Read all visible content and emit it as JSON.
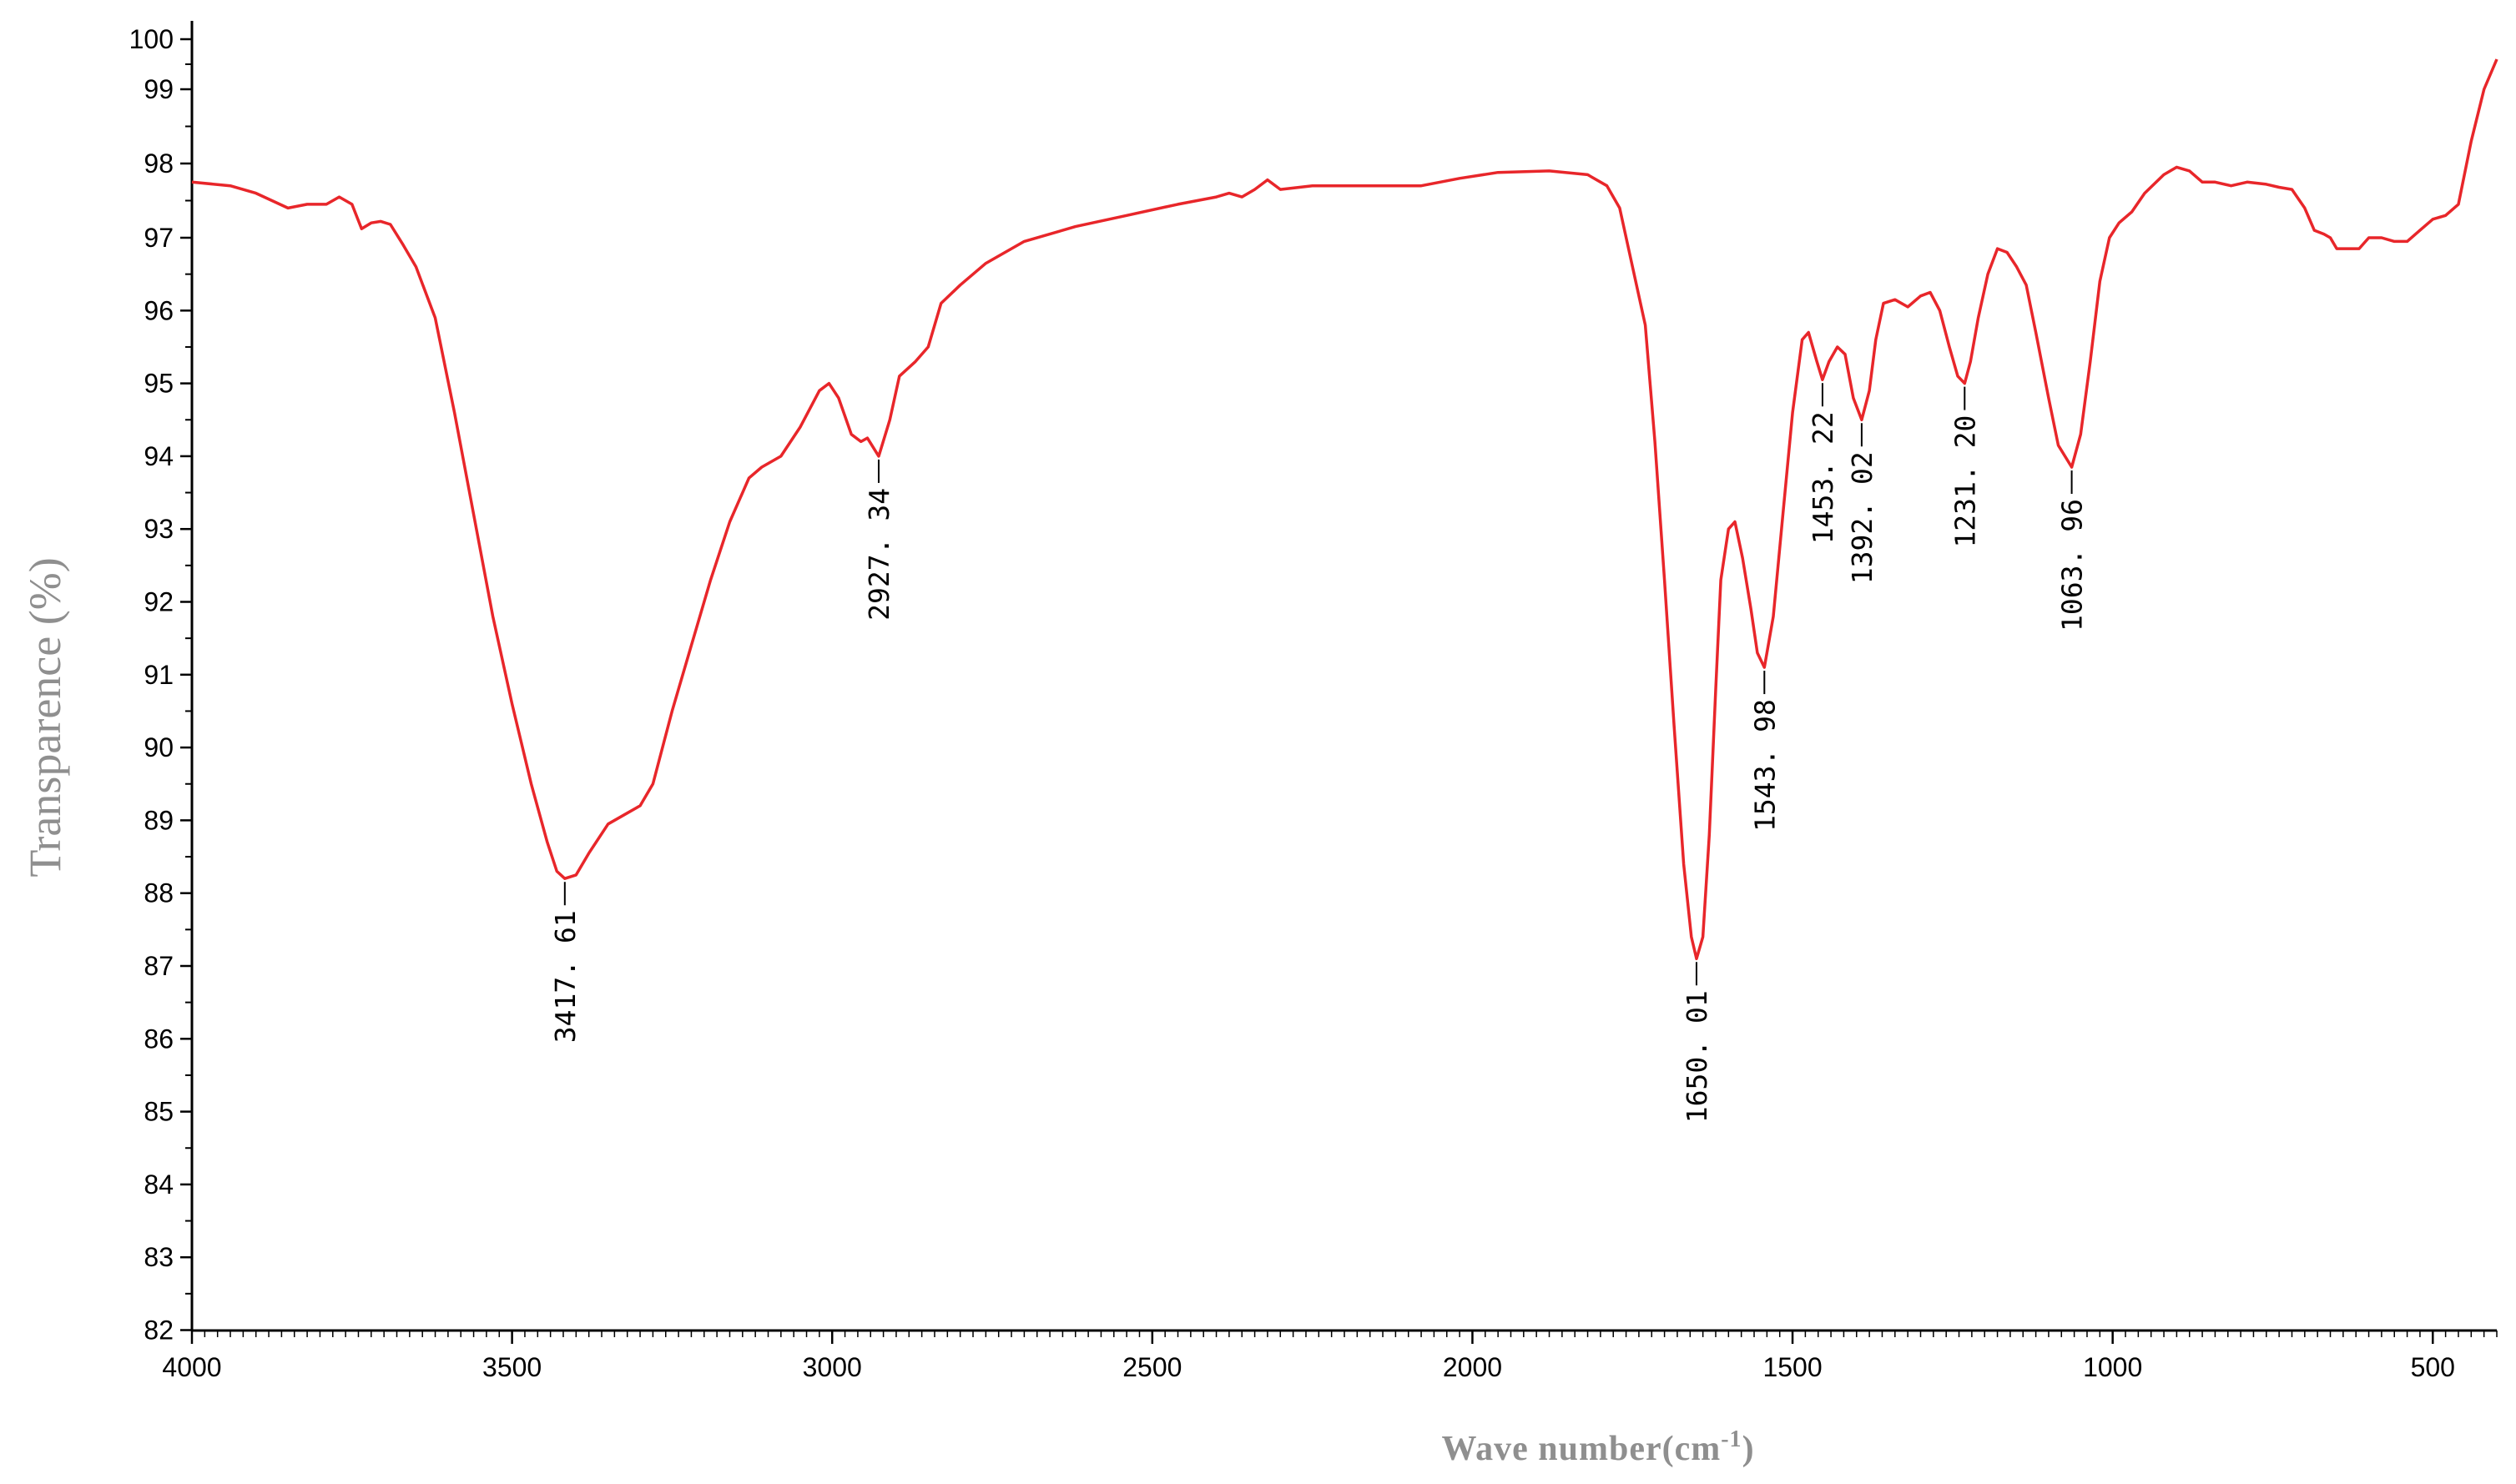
{
  "chart_data": {
    "type": "line",
    "xlabel": "Wave number(cm-1)",
    "ylabel": "Transparence (%)",
    "xlim": [
      4000,
      400
    ],
    "ylim": [
      82,
      100
    ],
    "x_ticks": [
      "4000",
      "3500",
      "3000",
      "2500",
      "2000",
      "1500",
      "1000",
      "500"
    ],
    "y_ticks": [
      "82",
      "83",
      "84",
      "85",
      "86",
      "87",
      "88",
      "89",
      "90",
      "91",
      "92",
      "93",
      "94",
      "95",
      "96",
      "97",
      "98",
      "99",
      "100"
    ],
    "grid": false,
    "line_color": "#e8262a",
    "series": [
      {
        "points": [
          [
            4000,
            97.75
          ],
          [
            3940,
            97.7
          ],
          [
            3900,
            97.6
          ],
          [
            3850,
            97.4
          ],
          [
            3820,
            97.45
          ],
          [
            3790,
            97.45
          ],
          [
            3770,
            97.55
          ],
          [
            3750,
            97.45
          ],
          [
            3735,
            97.12
          ],
          [
            3720,
            97.2
          ],
          [
            3705,
            97.22
          ],
          [
            3690,
            97.18
          ],
          [
            3670,
            96.9
          ],
          [
            3650,
            96.6
          ],
          [
            3620,
            95.9
          ],
          [
            3590,
            94.6
          ],
          [
            3560,
            93.2
          ],
          [
            3530,
            91.8
          ],
          [
            3500,
            90.6
          ],
          [
            3470,
            89.5
          ],
          [
            3445,
            88.7
          ],
          [
            3430,
            88.3
          ],
          [
            3417.61,
            88.2
          ],
          [
            3400,
            88.25
          ],
          [
            3380,
            88.55
          ],
          [
            3350,
            88.95
          ],
          [
            3320,
            89.1
          ],
          [
            3300,
            89.2
          ],
          [
            3280,
            89.5
          ],
          [
            3250,
            90.5
          ],
          [
            3220,
            91.4
          ],
          [
            3190,
            92.3
          ],
          [
            3160,
            93.1
          ],
          [
            3130,
            93.7
          ],
          [
            3110,
            93.85
          ],
          [
            3080,
            94.0
          ],
          [
            3050,
            94.4
          ],
          [
            3020,
            94.9
          ],
          [
            3005,
            95.0
          ],
          [
            2990,
            94.8
          ],
          [
            2970,
            94.3
          ],
          [
            2955,
            94.2
          ],
          [
            2945,
            94.25
          ],
          [
            2927.34,
            94.0
          ],
          [
            2910,
            94.5
          ],
          [
            2895,
            95.1
          ],
          [
            2870,
            95.3
          ],
          [
            2850,
            95.5
          ],
          [
            2830,
            96.1
          ],
          [
            2800,
            96.35
          ],
          [
            2760,
            96.65
          ],
          [
            2700,
            96.95
          ],
          [
            2620,
            97.15
          ],
          [
            2540,
            97.3
          ],
          [
            2460,
            97.45
          ],
          [
            2400,
            97.55
          ],
          [
            2380,
            97.6
          ],
          [
            2360,
            97.55
          ],
          [
            2340,
            97.65
          ],
          [
            2320,
            97.78
          ],
          [
            2300,
            97.65
          ],
          [
            2250,
            97.7
          ],
          [
            2200,
            97.7
          ],
          [
            2150,
            97.7
          ],
          [
            2080,
            97.7
          ],
          [
            2020,
            97.8
          ],
          [
            1960,
            97.88
          ],
          [
            1880,
            97.9
          ],
          [
            1820,
            97.85
          ],
          [
            1790,
            97.7
          ],
          [
            1770,
            97.4
          ],
          [
            1750,
            96.6
          ],
          [
            1730,
            95.8
          ],
          [
            1715,
            94.2
          ],
          [
            1700,
            92.3
          ],
          [
            1685,
            90.3
          ],
          [
            1670,
            88.4
          ],
          [
            1658,
            87.4
          ],
          [
            1650.01,
            87.1
          ],
          [
            1640,
            87.4
          ],
          [
            1630,
            88.8
          ],
          [
            1620,
            90.8
          ],
          [
            1612,
            92.3
          ],
          [
            1600,
            93.0
          ],
          [
            1590,
            93.1
          ],
          [
            1578,
            92.6
          ],
          [
            1565,
            91.9
          ],
          [
            1555,
            91.3
          ],
          [
            1543.98,
            91.1
          ],
          [
            1530,
            91.8
          ],
          [
            1515,
            93.2
          ],
          [
            1500,
            94.6
          ],
          [
            1485,
            95.6
          ],
          [
            1475,
            95.7
          ],
          [
            1462,
            95.3
          ],
          [
            1453.22,
            95.05
          ],
          [
            1443,
            95.3
          ],
          [
            1430,
            95.5
          ],
          [
            1418,
            95.4
          ],
          [
            1405,
            94.8
          ],
          [
            1392.02,
            94.5
          ],
          [
            1380,
            94.9
          ],
          [
            1370,
            95.6
          ],
          [
            1358,
            96.1
          ],
          [
            1340,
            96.15
          ],
          [
            1320,
            96.05
          ],
          [
            1300,
            96.2
          ],
          [
            1285,
            96.25
          ],
          [
            1270,
            96.0
          ],
          [
            1255,
            95.5
          ],
          [
            1242,
            95.1
          ],
          [
            1231.2,
            95.0
          ],
          [
            1222,
            95.3
          ],
          [
            1210,
            95.9
          ],
          [
            1195,
            96.5
          ],
          [
            1180,
            96.85
          ],
          [
            1165,
            96.8
          ],
          [
            1150,
            96.6
          ],
          [
            1135,
            96.35
          ],
          [
            1120,
            95.7
          ],
          [
            1100,
            94.8
          ],
          [
            1085,
            94.15
          ],
          [
            1063.96,
            93.85
          ],
          [
            1050,
            94.3
          ],
          [
            1035,
            95.3
          ],
          [
            1020,
            96.4
          ],
          [
            1005,
            97.0
          ],
          [
            990,
            97.2
          ],
          [
            970,
            97.35
          ],
          [
            950,
            97.6
          ],
          [
            920,
            97.85
          ],
          [
            900,
            97.95
          ],
          [
            880,
            97.9
          ],
          [
            860,
            97.75
          ],
          [
            840,
            97.75
          ],
          [
            815,
            97.7
          ],
          [
            790,
            97.75
          ],
          [
            760,
            97.72
          ],
          [
            740,
            97.68
          ],
          [
            720,
            97.65
          ],
          [
            700,
            97.4
          ],
          [
            685,
            97.1
          ],
          [
            670,
            97.05
          ],
          [
            660,
            97.0
          ],
          [
            650,
            96.85
          ],
          [
            635,
            96.85
          ],
          [
            615,
            96.85
          ],
          [
            600,
            97.0
          ],
          [
            580,
            97.0
          ],
          [
            560,
            96.95
          ],
          [
            540,
            96.95
          ],
          [
            520,
            97.1
          ],
          [
            500,
            97.25
          ],
          [
            480,
            97.3
          ],
          [
            460,
            97.45
          ],
          [
            440,
            98.3
          ],
          [
            420,
            99.0
          ],
          [
            400,
            99.6
          ]
        ]
      }
    ],
    "annotations": [
      {
        "x": 3417.61,
        "label": "3417. 61"
      },
      {
        "x": 2927.34,
        "label": "2927. 34"
      },
      {
        "x": 1650.01,
        "label": "1650. 01"
      },
      {
        "x": 1543.98,
        "label": "1543. 98"
      },
      {
        "x": 1453.22,
        "label": "1453. 22"
      },
      {
        "x": 1392.02,
        "label": "1392. 02"
      },
      {
        "x": 1231.2,
        "label": "1231. 20"
      },
      {
        "x": 1063.96,
        "label": "1063. 96"
      }
    ]
  }
}
